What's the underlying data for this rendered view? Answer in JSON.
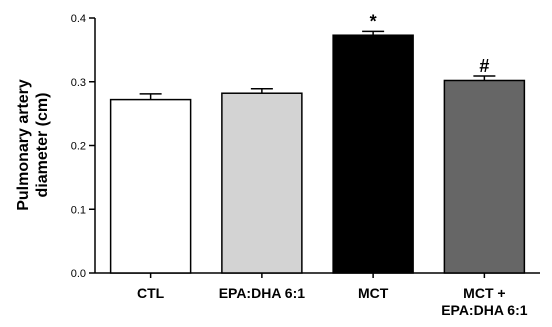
{
  "chart_data": {
    "type": "bar",
    "ylabel_lines": [
      "Pulmonary artery",
      "diameter (cm)"
    ],
    "xlabel": "",
    "ylim": [
      0.0,
      0.4
    ],
    "yticks": [
      "0.0",
      "0.1",
      "0.2",
      "0.3",
      "0.4"
    ],
    "yticks_values": [
      0.0,
      0.1,
      0.2,
      0.3,
      0.4
    ],
    "categories": [
      {
        "label_lines": [
          "CTL"
        ],
        "value": 0.272,
        "error": 0.009,
        "color": "#ffffff",
        "annotation": ""
      },
      {
        "label_lines": [
          "EPA:DHA 6:1"
        ],
        "value": 0.282,
        "error": 0.007,
        "color": "#d3d3d3",
        "annotation": ""
      },
      {
        "label_lines": [
          "MCT"
        ],
        "value": 0.373,
        "error": 0.006,
        "color": "#000000",
        "annotation": "*"
      },
      {
        "label_lines": [
          "MCT +",
          "EPA:DHA 6:1"
        ],
        "value": 0.302,
        "error": 0.007,
        "color": "#666666",
        "annotation": "#"
      }
    ],
    "grid": false
  }
}
